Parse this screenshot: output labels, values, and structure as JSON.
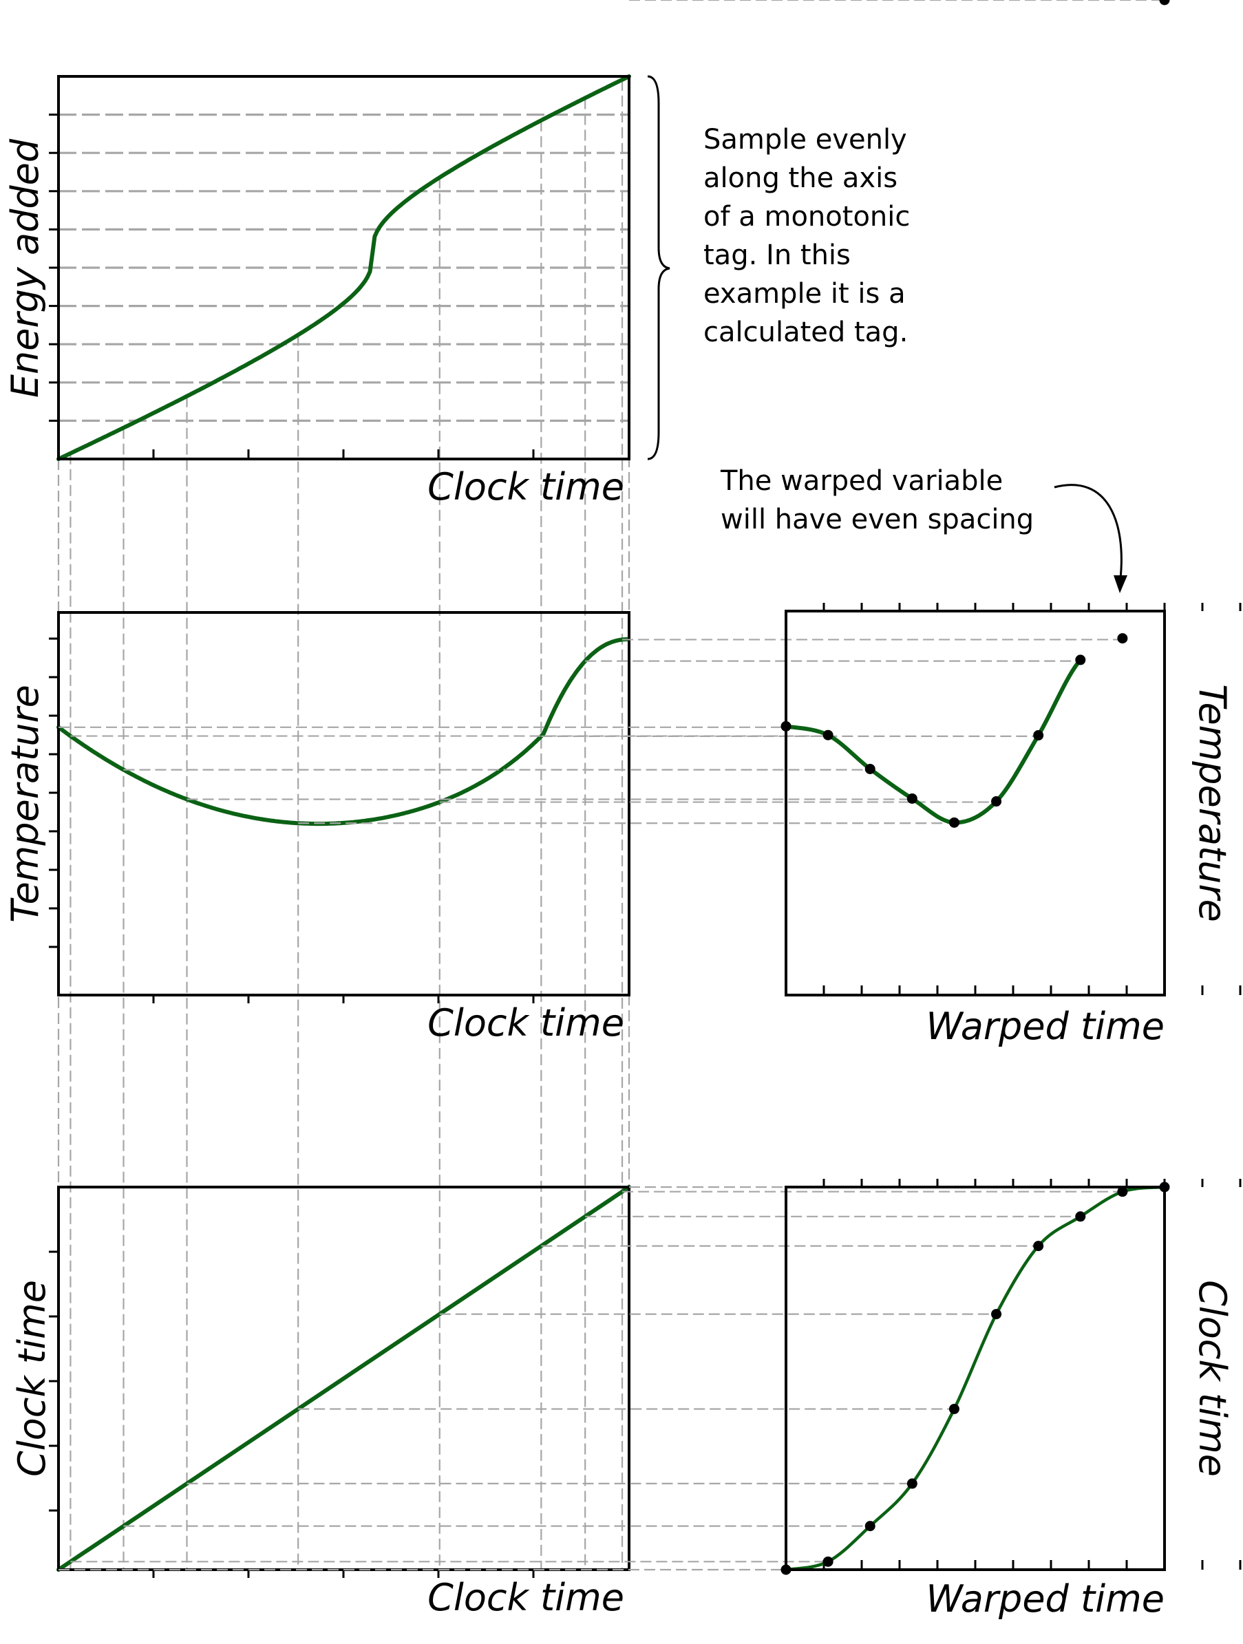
{
  "colors": {
    "curve": "#0b6114",
    "guide": "#a6a6a6",
    "frame": "#000000"
  },
  "annotations": {
    "sample_note": [
      "Sample evenly",
      "along the axis",
      "of a monotonic",
      "tag. In this",
      "example it is a",
      "calculated tag."
    ],
    "warp_note": [
      "The warped variable",
      "will have even spacing"
    ]
  },
  "panels": {
    "energy": {
      "xlabel": "Clock time",
      "ylabel": "Energy added"
    },
    "temperature": {
      "xlabel": "Clock time",
      "ylabel": "Temperature"
    },
    "warped_temperature": {
      "xlabel": "Warped time",
      "ylabel": "Temperature"
    },
    "clock": {
      "xlabel": "Clock time",
      "ylabel": "Clock time"
    },
    "warped_clock": {
      "xlabel": "Warped time",
      "ylabel": "Clock time"
    }
  },
  "chart_data": {
    "type": "line",
    "sample_count": 10,
    "clock_samples": [
      0.0,
      0.021,
      0.114,
      0.225,
      0.42,
      0.668,
      0.846,
      0.923,
      0.988,
      1.0
    ]
  }
}
